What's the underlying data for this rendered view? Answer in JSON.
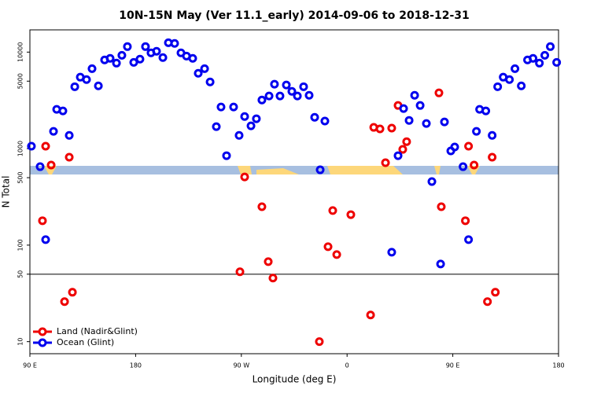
{
  "chart_data": {
    "type": "scatter",
    "title": "10N-15N May (Ver 11.1_early)   2014-09-06 to 2018-12-31",
    "xlabel": "Longitude (deg E)",
    "ylabel": "N Total",
    "xlim": [
      90,
      540
    ],
    "xticks": [
      {
        "value": 90,
        "label": "90 E"
      },
      180,
      {
        "value": 270,
        "label": "90 W"
      },
      {
        "value": 360,
        "label": "0"
      },
      {
        "value": 450,
        "label": "90 E"
      },
      {
        "value": 540,
        "label": "180"
      }
    ],
    "ylim": [
      7.5,
      17000
    ],
    "yticks": [
      10,
      50,
      100,
      500,
      1000,
      5000,
      10000
    ],
    "ylog": true,
    "hline": 50,
    "legend": "lower left",
    "series": [
      {
        "name": "Land (Nadir&Glint)",
        "color": "#ee0000",
        "x": [
          100.7,
          103.4,
          108.1,
          119.5,
          123.5,
          126.2,
          268.8,
          272.8,
          287.5,
          292.9,
          296.9,
          336.4,
          343.8,
          347.8,
          351.2,
          363.2,
          380.0,
          382.7,
          388.0,
          392.7,
          398.0,
          403.4,
          407.4,
          410.7,
          438.2,
          440.2,
          460.7,
          463.4,
          468.1,
          479.5,
          483.5,
          486.2
        ],
        "values": [
          179,
          1060,
          675,
          26.0,
          815,
          32.5,
          53.0,
          509,
          250,
          67.5,
          45.6,
          10,
          96.4,
          228,
          79.8,
          207,
          18.9,
          1660,
          1600,
          714,
          1630,
          2800,
          982,
          1180,
          3780,
          250,
          179,
          1060,
          675,
          26.0,
          815,
          32.5
        ]
      },
      {
        "name": "Ocean (Glint)",
        "color": "#0000ee",
        "x": [
          91.3,
          98.7,
          103.4,
          110.1,
          112.8,
          118.1,
          123.5,
          128.2,
          132.9,
          138.2,
          142.9,
          148.3,
          153.6,
          158.3,
          163.7,
          168.3,
          173.0,
          178.4,
          183.7,
          188.4,
          193.1,
          197.8,
          203.2,
          207.9,
          213.2,
          218.6,
          223.3,
          228.6,
          233.3,
          238.7,
          243.4,
          248.7,
          252.7,
          257.4,
          263.4,
          268.1,
          272.8,
          278.2,
          282.8,
          287.5,
          293.6,
          298.2,
          302.9,
          308.3,
          313.0,
          317.7,
          323.0,
          327.7,
          332.4,
          337.1,
          341.1,
          398.0,
          403.4,
          408.1,
          412.8,
          417.5,
          422.2,
          427.5,
          432.2,
          439.6,
          442.9,
          448.3,
          451.6,
          458.7,
          463.4,
          470.1,
          472.8,
          478.1,
          483.5,
          488.2,
          492.9,
          498.2,
          502.9,
          508.3,
          513.6,
          518.3,
          523.7,
          528.3,
          533.0,
          538.4
        ],
        "values": [
          1060,
          650,
          114,
          1510,
          2550,
          2460,
          1370,
          4380,
          5500,
          5190,
          6740,
          4470,
          8300,
          8610,
          7690,
          9270,
          11400,
          7830,
          8450,
          11400,
          9820,
          10200,
          8770,
          12500,
          12300,
          9820,
          9100,
          8610,
          6030,
          6740,
          4910,
          1690,
          2700,
          845,
          2700,
          1370,
          2150,
          1720,
          2040,
          3190,
          3510,
          4650,
          3510,
          4560,
          3920,
          3510,
          4380,
          3570,
          2110,
          603,
          1930,
          84.5,
          845,
          2600,
          1960,
          3570,
          2800,
          1820,
          456,
          63.8,
          1890,
          946,
          1040,
          650,
          114,
          1510,
          2550,
          2460,
          1370,
          4380,
          5500,
          5190,
          6740,
          4470,
          8300,
          8610,
          7690,
          9270,
          11400,
          7830
        ]
      }
    ]
  }
}
